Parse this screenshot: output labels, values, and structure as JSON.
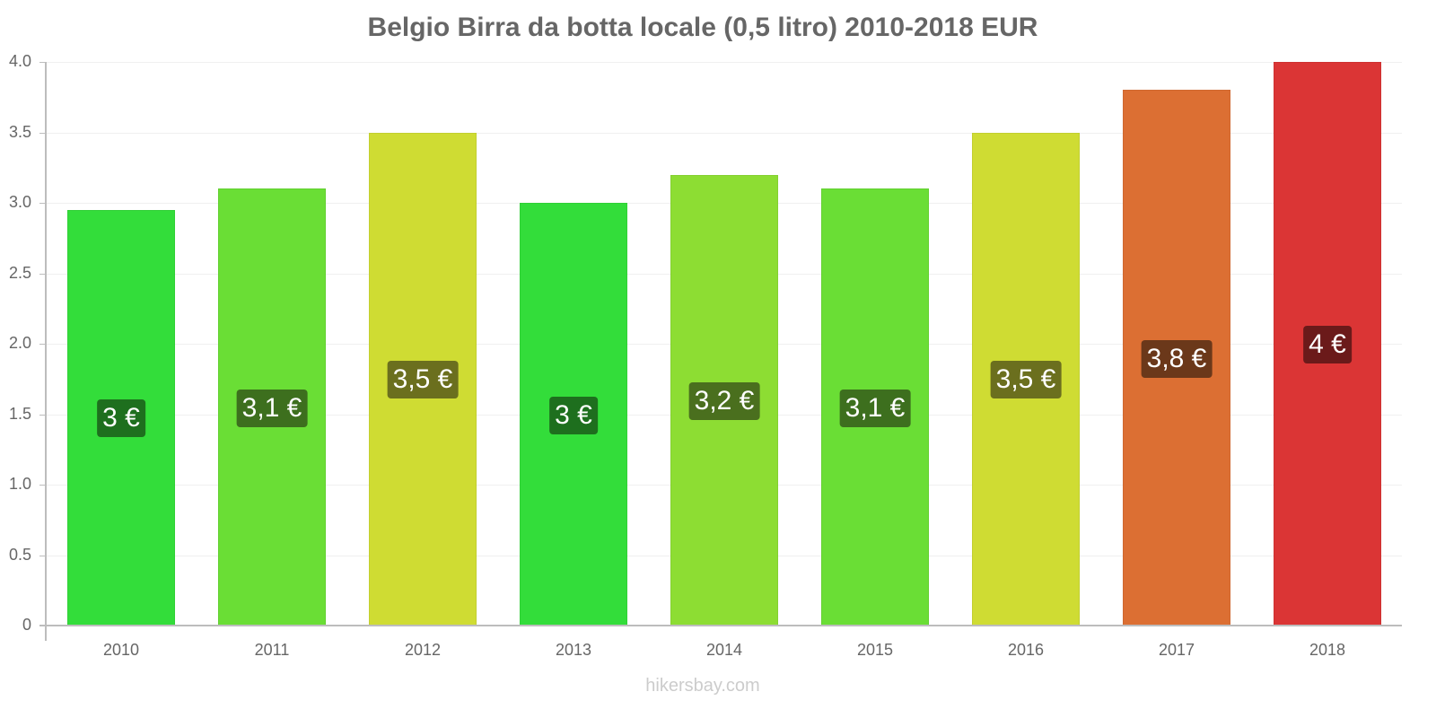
{
  "chart_data": {
    "type": "bar",
    "title": "Belgio Birra da botta locale (0,5 litro) 2010-2018 EUR",
    "xlabel": "",
    "ylabel": "",
    "ylim": [
      0,
      4.0
    ],
    "yticks": [
      "0",
      "0.5",
      "1.0",
      "1.5",
      "2.0",
      "2.5",
      "3.0",
      "3.5",
      "4.0"
    ],
    "grid": true,
    "legend": null,
    "categories": [
      "2010",
      "2011",
      "2012",
      "2013",
      "2014",
      "2015",
      "2016",
      "2017",
      "2018"
    ],
    "values": [
      2.95,
      3.1,
      3.5,
      3.0,
      3.2,
      3.1,
      3.5,
      3.8,
      4.0
    ],
    "data_labels": [
      "3 €",
      "3,1 €",
      "3,5 €",
      "3 €",
      "3,2 €",
      "3,1 €",
      "3,5 €",
      "3,8 €",
      "4 €"
    ],
    "bar_colors": [
      "#33dd3a",
      "#6ade35",
      "#cfdc33",
      "#33dd3a",
      "#8ddd33",
      "#6ade35",
      "#cfdc33",
      "#dc6f33",
      "#db3535"
    ],
    "label_bg_colors": [
      "#1e6f1e",
      "#3d6f1e",
      "#6b6f1e",
      "#1e6f1e",
      "#4a6f1e",
      "#3d6f1e",
      "#6b6f1e",
      "#6b381a",
      "#6b1a1a"
    ]
  },
  "footer": {
    "source": "hikersbay.com"
  }
}
